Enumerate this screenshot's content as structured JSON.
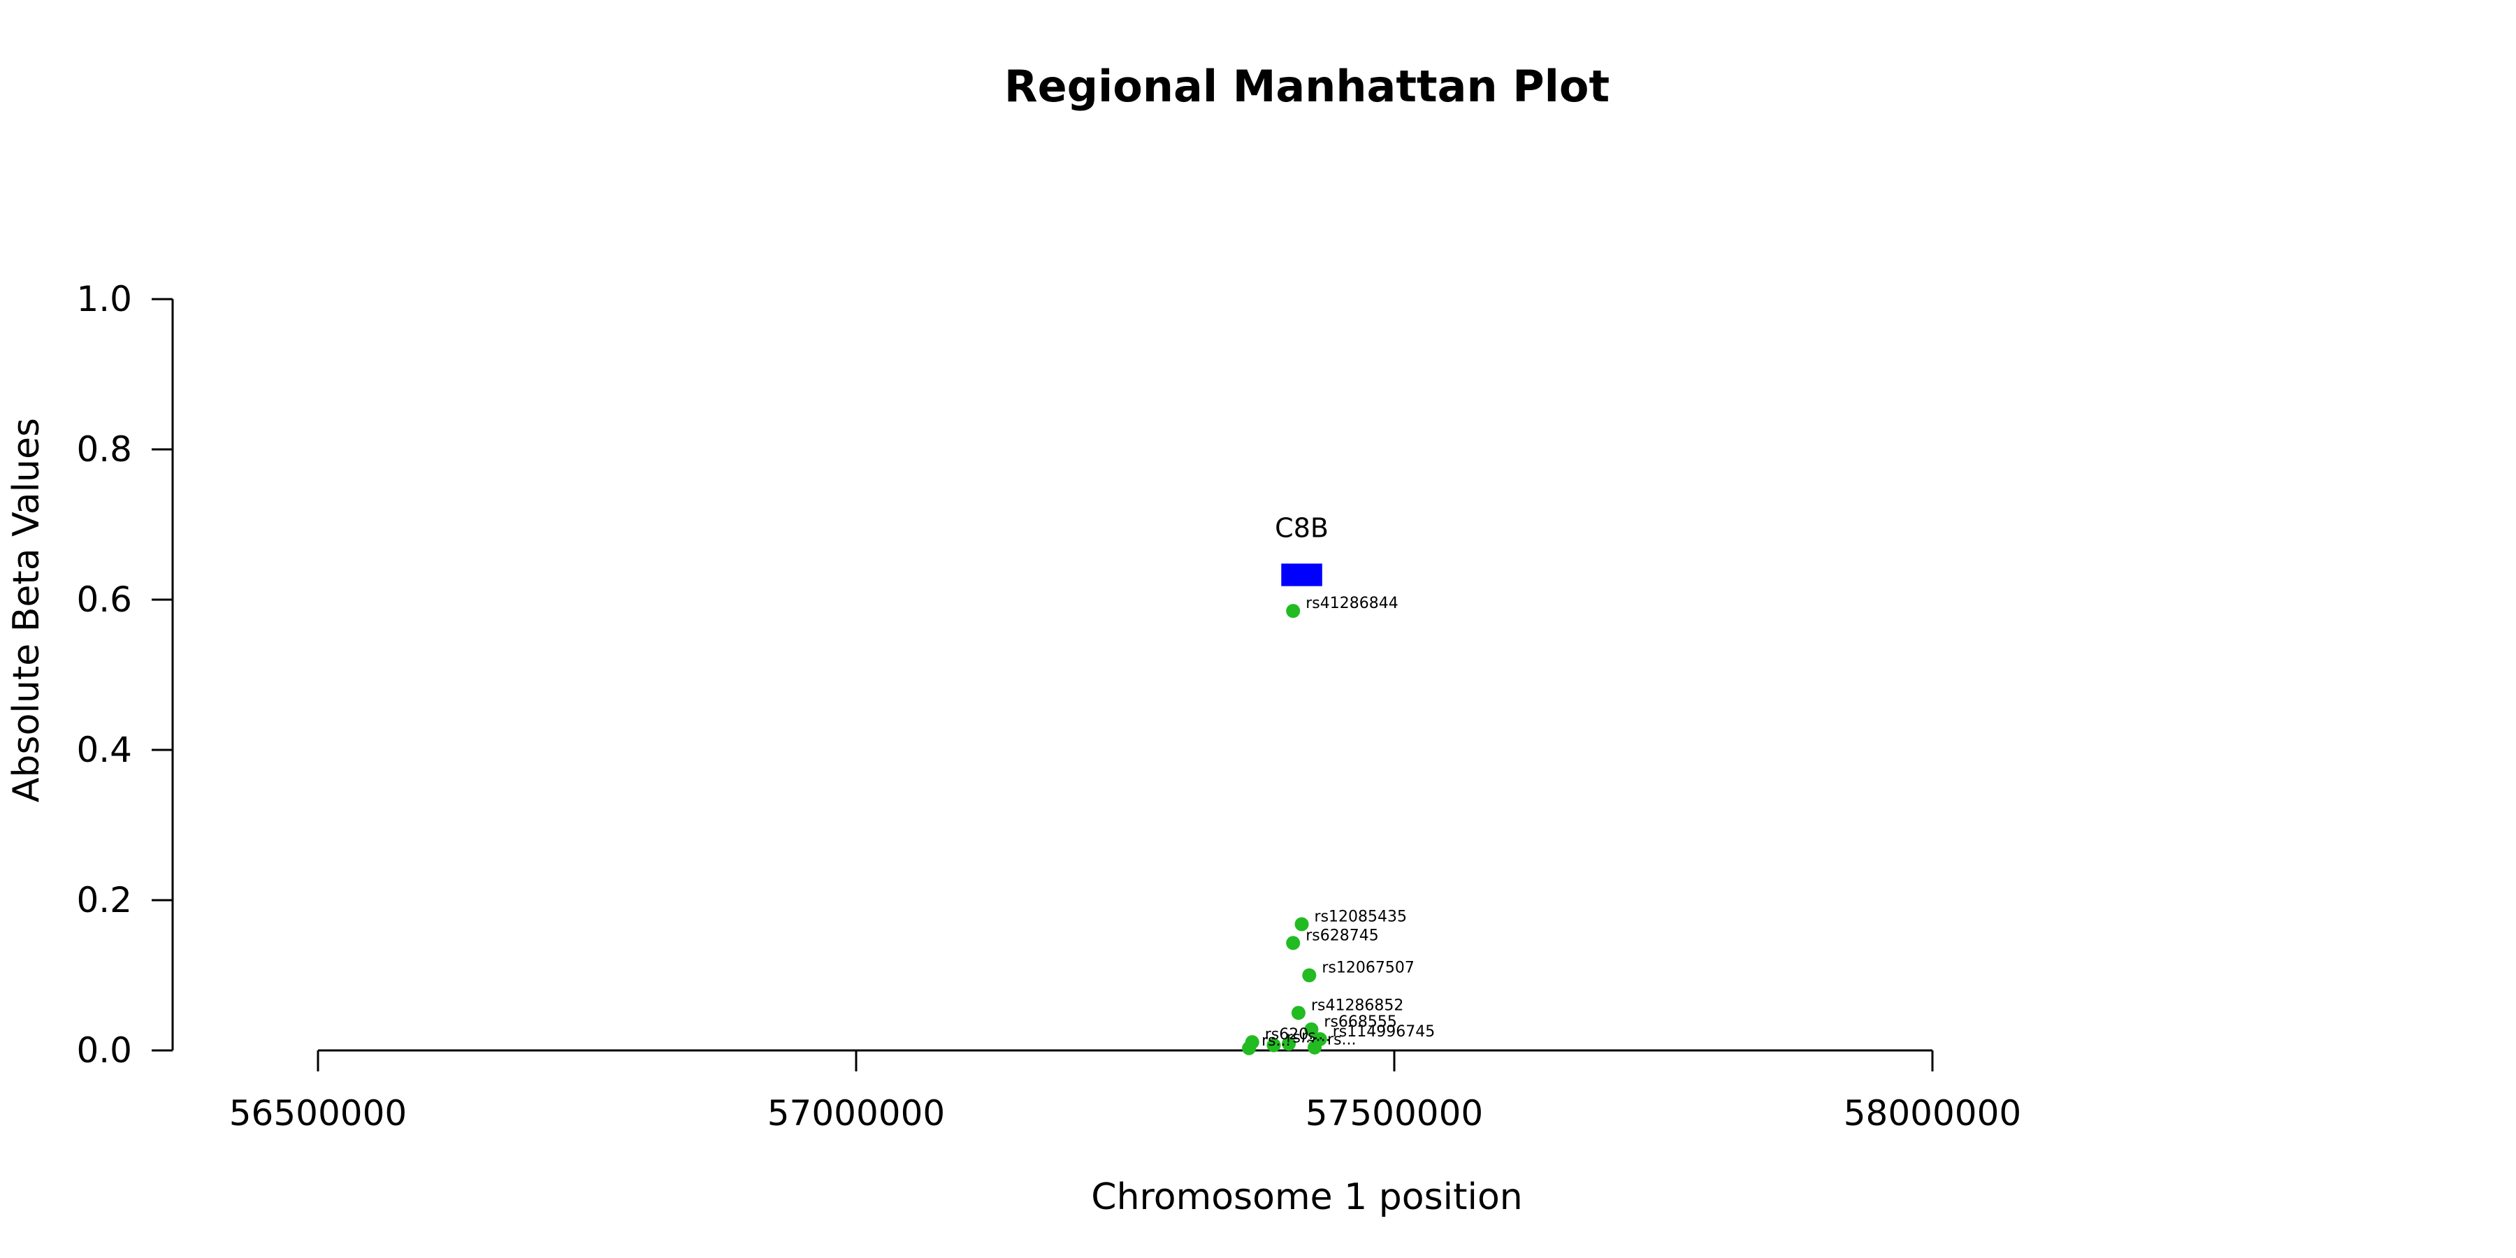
{
  "chart_data": {
    "type": "scatter",
    "title": "Regional Manhattan Plot",
    "xlabel": "Chromosome 1 position",
    "ylabel": "Absolute Beta Values",
    "xlim": [
      56230000,
      58300000
    ],
    "ylim": [
      0,
      1.0
    ],
    "x_ticks": [
      56500000,
      57000000,
      57500000,
      58000000
    ],
    "y_ticks": [
      0.0,
      0.2,
      0.4,
      0.6,
      0.8,
      1.0
    ],
    "y_tick_labels": [
      "0.0",
      "0.2",
      "0.4",
      "0.6",
      "0.8",
      "1.0"
    ],
    "x_axis_range": [
      56500000,
      58000000
    ],
    "grid": false,
    "point_color": "#22bb22",
    "gene": {
      "name": "C8B",
      "start": 57395000,
      "end": 57433000,
      "y_bottom": 0.618,
      "y_top": 0.648,
      "color": "#0000ff"
    },
    "points": [
      {
        "label": "rs41286844",
        "x": 57406000,
        "y": 0.585
      },
      {
        "label": "rs12085435",
        "x": 57414000,
        "y": 0.168
      },
      {
        "label": "rs628745",
        "x": 57406000,
        "y": 0.143
      },
      {
        "label": "rs12067507",
        "x": 57421000,
        "y": 0.1
      },
      {
        "label": "rs41286852",
        "x": 57411000,
        "y": 0.05
      },
      {
        "label": "rs668555",
        "x": 57423000,
        "y": 0.028
      },
      {
        "label": "rs114996745",
        "x": 57431000,
        "y": 0.015
      },
      {
        "label": "rs620...",
        "x": 57368000,
        "y": 0.011
      },
      {
        "label": "rs...",
        "x": 57402000,
        "y": 0.009
      },
      {
        "label": "rs...",
        "x": 57388000,
        "y": 0.007
      },
      {
        "label": "rs...",
        "x": 57426000,
        "y": 0.004
      },
      {
        "label": "rs...",
        "x": 57365000,
        "y": 0.003
      }
    ]
  }
}
